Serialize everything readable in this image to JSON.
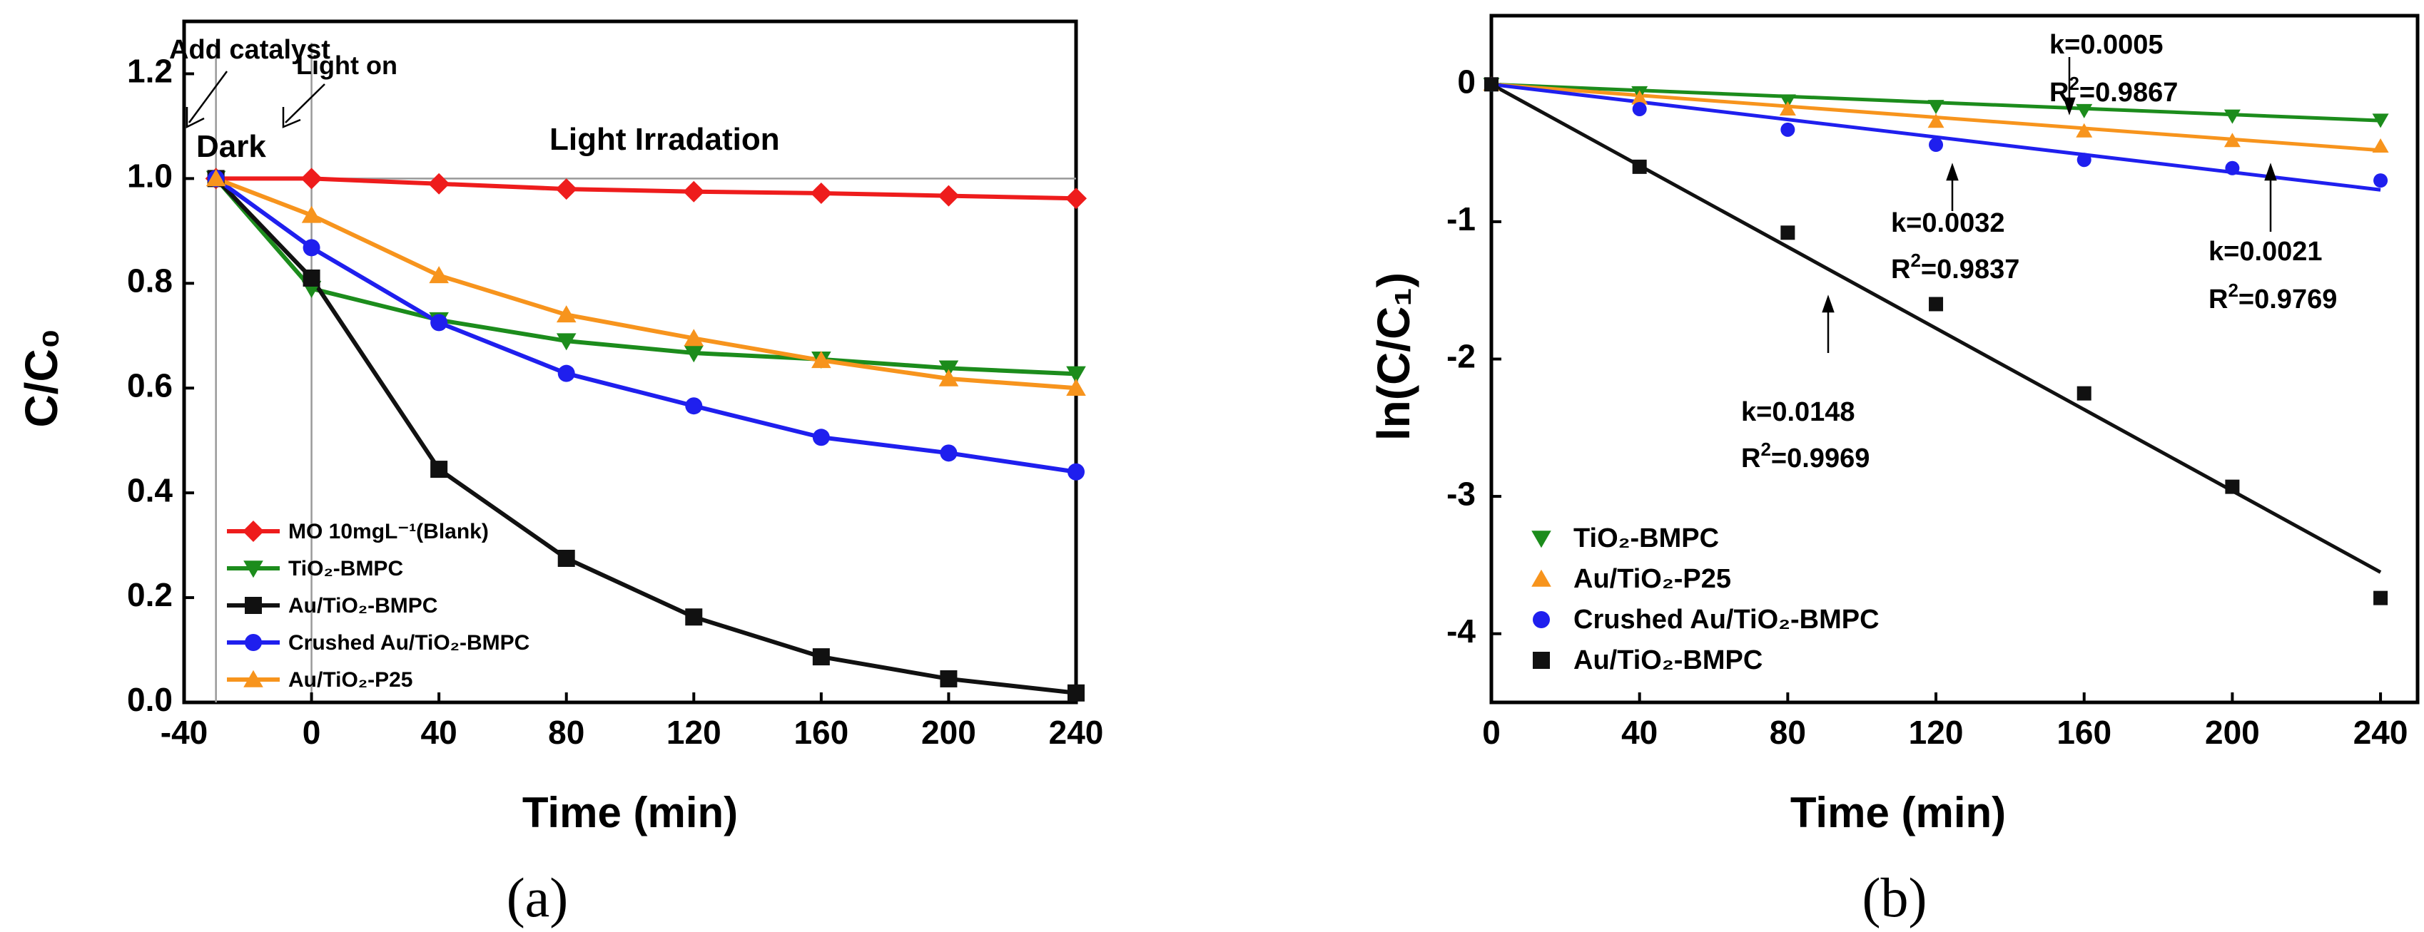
{
  "chart_data": [
    {
      "type": "line",
      "panel_label": "(a)",
      "xlabel": "Time (min)",
      "ylabel": "C/C₀",
      "xlim": [
        -40,
        240
      ],
      "ylim": [
        0.0,
        1.3
      ],
      "xticks": [
        -40,
        0,
        40,
        80,
        120,
        160,
        200,
        240
      ],
      "yticks": [
        0.0,
        0.2,
        0.4,
        0.6,
        0.8,
        1.0,
        1.2
      ],
      "xtick_labels": [
        "-40",
        "0",
        "40",
        "80",
        "120",
        "160",
        "200",
        "240"
      ],
      "ytick_labels": [
        "0.0",
        "0.2",
        "0.4",
        "0.6",
        "0.8",
        "1.0",
        "1.2"
      ],
      "x": [
        -30,
        0,
        40,
        80,
        120,
        160,
        200,
        240
      ],
      "series": [
        {
          "name": "MO 10mgL⁻¹(Blank)",
          "color": "#ee1c1c",
          "marker": "diamond",
          "values": [
            1.0,
            1.0,
            0.99,
            0.98,
            0.975,
            0.972,
            0.967,
            0.962
          ]
        },
        {
          "name": "TiO₂-BMPC",
          "color": "#1c8c1c",
          "marker": "triangle-down",
          "values": [
            1.0,
            0.79,
            0.73,
            0.69,
            0.667,
            0.655,
            0.638,
            0.627
          ]
        },
        {
          "name": "Au/TiO₂-BMPC",
          "color": "#111111",
          "marker": "square",
          "values": [
            1.0,
            0.81,
            0.445,
            0.275,
            0.163,
            0.087,
            0.045,
            0.018
          ]
        },
        {
          "name": "Crushed Au/TiO₂-BMPC",
          "color": "#1f1fee",
          "marker": "circle",
          "values": [
            1.0,
            0.868,
            0.725,
            0.628,
            0.566,
            0.506,
            0.476,
            0.44
          ]
        },
        {
          "name": "Au/TiO₂-P25",
          "color": "#f7941d",
          "marker": "triangle-up",
          "values": [
            1.0,
            0.93,
            0.815,
            0.74,
            0.695,
            0.653,
            0.618,
            0.6
          ]
        }
      ],
      "annotations": {
        "add_catalyst": "Add catalyst",
        "light_on": "Light on",
        "dark": "Dark",
        "light_irradation": "Light Irradation"
      }
    },
    {
      "type": "scatter",
      "panel_label": "(b)",
      "xlabel": "Time (min)",
      "ylabel": "ln(C/C₁)",
      "xlim": [
        0,
        250
      ],
      "ylim": [
        -4.5,
        0.5
      ],
      "xticks": [
        0,
        40,
        80,
        120,
        160,
        200,
        240
      ],
      "yticks": [
        0,
        -1,
        -2,
        -3,
        -4
      ],
      "xtick_labels": [
        "0",
        "40",
        "80",
        "120",
        "160",
        "200",
        "240"
      ],
      "ytick_labels": [
        "0",
        "-1",
        "-2",
        "-3",
        "-4"
      ],
      "x": [
        0,
        40,
        80,
        120,
        160,
        200,
        240
      ],
      "series": [
        {
          "name": "TiO₂-BMPC",
          "color": "#1c8c1c",
          "marker": "triangle-down",
          "values": [
            0,
            -0.06,
            -0.12,
            -0.16,
            -0.19,
            -0.23,
            -0.26
          ],
          "fit_slope": -0.0011
        },
        {
          "name": "Au/TiO₂-P25",
          "color": "#f7941d",
          "marker": "triangle-up",
          "values": [
            0,
            -0.1,
            -0.18,
            -0.27,
            -0.34,
            -0.41,
            -0.45
          ],
          "fit_slope": -0.002
        },
        {
          "name": "Crushed Au/TiO₂-BMPC",
          "color": "#1f1fee",
          "marker": "circle",
          "values": [
            0,
            -0.18,
            -0.33,
            -0.44,
            -0.55,
            -0.61,
            -0.7
          ],
          "fit_slope": -0.0032
        },
        {
          "name": "Au/TiO₂-BMPC",
          "color": "#111111",
          "marker": "square",
          "values": [
            0,
            -0.6,
            -1.08,
            -1.6,
            -2.25,
            -2.93,
            -3.74
          ],
          "fit_slope": -0.0148
        }
      ],
      "annotations": {
        "k1": "k=0.0005",
        "r1": "=0.9867",
        "k2": "k=0.0032",
        "r2": "=0.9837",
        "k3": "k=0.0021",
        "r3": "=0.9769",
        "k4": "k=0.0148",
        "r4": "=0.9969"
      }
    }
  ]
}
